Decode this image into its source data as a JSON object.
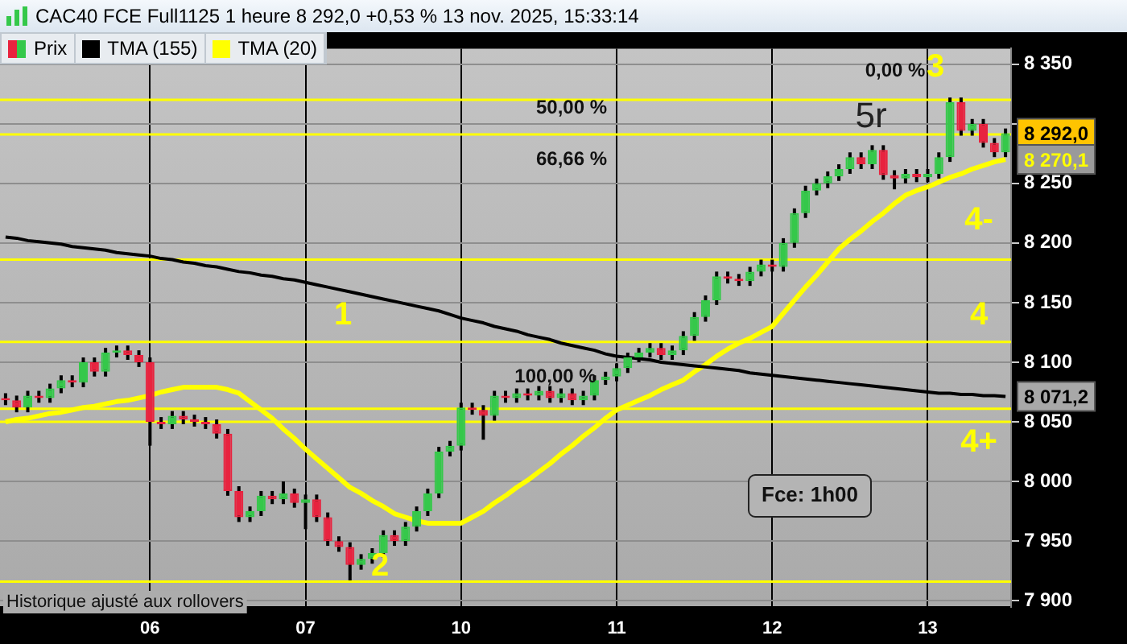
{
  "chart_data": {
    "type": "candlestick",
    "title": "CAC40 FCE Full1125 1 heure 8 292,0 +0,53 % 13 nov. 2025, 15:33:14",
    "categories": [
      null,
      null,
      null,
      null,
      null,
      null,
      null,
      null,
      null,
      null,
      null,
      null,
      null,
      "06",
      null,
      null,
      null,
      null,
      null,
      null,
      null,
      null,
      null,
      null,
      null,
      null,
      null,
      "07",
      null,
      null,
      null,
      null,
      null,
      null,
      null,
      null,
      null,
      null,
      null,
      null,
      null,
      "10",
      null,
      null,
      null,
      null,
      null,
      null,
      null,
      null,
      null,
      null,
      null,
      null,
      null,
      "11",
      null,
      null,
      null,
      null,
      null,
      null,
      null,
      null,
      null,
      null,
      null,
      null,
      null,
      "12",
      null,
      null,
      null,
      null,
      null,
      null,
      null,
      null,
      null,
      null,
      null,
      null,
      null,
      "13",
      null,
      null,
      null,
      null,
      null,
      null,
      null
    ],
    "series": [
      {
        "name": "Prix",
        "colors": [
          "#e8233f",
          "#e8233f",
          "#35c84a",
          "#e8233f",
          "#35c84a",
          "#35c84a",
          "#e8233f",
          "#35c84a",
          "#e8233f",
          "#35c84a",
          "#35c84a",
          "#e8233f",
          "#e8233f",
          "#e8233f",
          "#e8233f",
          "#35c84a",
          "#e8233f",
          "#e8233f",
          "#e8233f",
          "#e8233f",
          "#e8233f",
          "#e8233f",
          "#35c84a",
          "#35c84a",
          "#e8233f",
          "#35c84a",
          "#e8233f",
          "#35c84a",
          "#e8233f",
          "#e8233f",
          "#e8233f",
          "#e8233f",
          "#35c84a",
          "#35c84a",
          "#35c84a",
          "#e8233f",
          "#35c84a",
          "#35c84a",
          "#35c84a",
          "#35c84a",
          "#35c84a",
          "#35c84a",
          "#e8233f",
          "#e8233f",
          "#35c84a",
          "#e8233f",
          "#35c84a",
          "#e8233f",
          "#35c84a",
          "#e8233f",
          "#35c84a",
          "#e8233f",
          "#35c84a",
          "#35c84a",
          "#35c84a",
          "#35c84a",
          "#35c84a",
          "#35c84a",
          "#35c84a",
          "#e8233f",
          "#35c84a",
          "#35c84a",
          "#35c84a",
          "#35c84a",
          "#35c84a",
          "#e8233f",
          "#e8233f",
          "#35c84a",
          "#35c84a",
          "#e8233f",
          "#35c84a",
          "#35c84a",
          "#35c84a",
          "#35c84a",
          "#35c84a",
          "#35c84a",
          "#35c84a",
          "#e8233f",
          "#35c84a",
          "#e8233f",
          "#e8233f",
          "#35c84a",
          "#e8233f",
          "#35c84a",
          "#35c84a",
          "#35c84a",
          "#e8233f",
          "#35c84a",
          "#e8233f",
          "#e8233f",
          "#35c84a"
        ],
        "value_labels": [
          null,
          null,
          null,
          null,
          null,
          null,
          null,
          null,
          null,
          null,
          null,
          null,
          null,
          null,
          null,
          null,
          null,
          null,
          null,
          null,
          null,
          null,
          null,
          null,
          null,
          null,
          null,
          null,
          null,
          null,
          null,
          null,
          null,
          null,
          null,
          null,
          null,
          null,
          null,
          null,
          null,
          null,
          null,
          null,
          null,
          null,
          null,
          null,
          null,
          null,
          null,
          null,
          null,
          null,
          null,
          null,
          null,
          null,
          null,
          null,
          null,
          null,
          null,
          null,
          null,
          null,
          null,
          null,
          null,
          null,
          null,
          null,
          null,
          null,
          null,
          null,
          null,
          null,
          null,
          null,
          null,
          null,
          null,
          null,
          null,
          null,
          null,
          null,
          null,
          null,
          "8 292,0"
        ],
        "ohlc": [
          [
            8070,
            8074,
            8064,
            8068
          ],
          [
            8068,
            8072,
            8058,
            8062
          ],
          [
            8062,
            8076,
            8058,
            8072
          ],
          [
            8072,
            8076,
            8066,
            8070
          ],
          [
            8070,
            8082,
            8066,
            8078
          ],
          [
            8078,
            8089,
            8074,
            8085
          ],
          [
            8085,
            8089,
            8079,
            8083
          ],
          [
            8083,
            8104,
            8079,
            8100
          ],
          [
            8100,
            8104,
            8088,
            8092
          ],
          [
            8092,
            8112,
            8088,
            8108
          ],
          [
            8108,
            8114,
            8104,
            8110
          ],
          [
            8110,
            8114,
            8102,
            8106
          ],
          [
            8106,
            8110,
            8096,
            8100
          ],
          [
            8100,
            8104,
            8030,
            8050
          ],
          [
            8050,
            8054,
            8044,
            8048
          ],
          [
            8048,
            8059,
            8044,
            8055
          ],
          [
            8055,
            8059,
            8048,
            8052
          ],
          [
            8052,
            8056,
            8046,
            8050
          ],
          [
            8050,
            8054,
            8044,
            8048
          ],
          [
            8048,
            8052,
            8036,
            8040
          ],
          [
            8040,
            8044,
            7988,
            7992
          ],
          [
            7992,
            7996,
            7966,
            7970
          ],
          [
            7970,
            7979,
            7966,
            7975
          ],
          [
            7975,
            7992,
            7971,
            7988
          ],
          [
            7988,
            7992,
            7981,
            7985
          ],
          [
            7985,
            8000,
            7981,
            7990
          ],
          [
            7990,
            7994,
            7978,
            7982
          ],
          [
            7982,
            7989,
            7960,
            7985
          ],
          [
            7985,
            7989,
            7966,
            7970
          ],
          [
            7970,
            7974,
            7946,
            7950
          ],
          [
            7950,
            7954,
            7941,
            7945
          ],
          [
            7945,
            7949,
            7917,
            7930
          ],
          [
            7930,
            7939,
            7926,
            7935
          ],
          [
            7935,
            7944,
            7931,
            7940
          ],
          [
            7940,
            7959,
            7936,
            7955
          ],
          [
            7955,
            7959,
            7946,
            7950
          ],
          [
            7950,
            7966,
            7946,
            7962
          ],
          [
            7962,
            7979,
            7958,
            7975
          ],
          [
            7975,
            7994,
            7971,
            7990
          ],
          [
            7990,
            8029,
            7986,
            8025
          ],
          [
            8025,
            8034,
            8021,
            8030
          ],
          [
            8030,
            8066,
            8026,
            8062
          ],
          [
            8062,
            8066,
            8056,
            8060
          ],
          [
            8060,
            8064,
            8035,
            8055
          ],
          [
            8055,
            8076,
            8051,
            8072
          ],
          [
            8072,
            8076,
            8066,
            8070
          ],
          [
            8070,
            8078,
            8066,
            8074
          ],
          [
            8074,
            8078,
            8068,
            8072
          ],
          [
            8072,
            8080,
            8068,
            8076
          ],
          [
            8076,
            8080,
            8066,
            8070
          ],
          [
            8070,
            8078,
            8066,
            8074
          ],
          [
            8074,
            8078,
            8064,
            8068
          ],
          [
            8068,
            8076,
            8064,
            8072
          ],
          [
            8072,
            8089,
            8068,
            8085
          ],
          [
            8085,
            8092,
            8081,
            8088
          ],
          [
            8088,
            8099,
            8084,
            8095
          ],
          [
            8095,
            8108,
            8091,
            8104
          ],
          [
            8104,
            8112,
            8100,
            8108
          ],
          [
            8108,
            8116,
            8104,
            8112
          ],
          [
            8112,
            8116,
            8102,
            8106
          ],
          [
            8106,
            8114,
            8102,
            8110
          ],
          [
            8110,
            8126,
            8106,
            8122
          ],
          [
            8122,
            8142,
            8118,
            8138
          ],
          [
            8138,
            8156,
            8134,
            8152
          ],
          [
            8152,
            8176,
            8148,
            8172
          ],
          [
            8172,
            8176,
            8166,
            8170
          ],
          [
            8170,
            8174,
            8164,
            8168
          ],
          [
            8168,
            8180,
            8164,
            8176
          ],
          [
            8176,
            8186,
            8172,
            8182
          ],
          [
            8182,
            8186,
            8176,
            8180
          ],
          [
            8180,
            8204,
            8176,
            8200
          ],
          [
            8200,
            8229,
            8196,
            8225
          ],
          [
            8225,
            8248,
            8221,
            8244
          ],
          [
            8244,
            8254,
            8240,
            8250
          ],
          [
            8250,
            8260,
            8246,
            8256
          ],
          [
            8256,
            8266,
            8252,
            8262
          ],
          [
            8262,
            8276,
            8258,
            8272
          ],
          [
            8272,
            8276,
            8262,
            8266
          ],
          [
            8266,
            8282,
            8262,
            8278
          ],
          [
            8278,
            8282,
            8253,
            8257
          ],
          [
            8257,
            8261,
            8245,
            8254
          ],
          [
            8254,
            8262,
            8250,
            8258
          ],
          [
            8258,
            8262,
            8251,
            8255
          ],
          [
            8255,
            8262,
            8251,
            8258
          ],
          [
            8258,
            8276,
            8254,
            8272
          ],
          [
            8272,
            8322,
            8268,
            8318
          ],
          [
            8318,
            8322,
            8290,
            8294
          ],
          [
            8294,
            8304,
            8290,
            8300
          ],
          [
            8300,
            8304,
            8280,
            8284
          ],
          [
            8284,
            8288,
            8272,
            8276
          ],
          [
            8276,
            8296,
            8272,
            8292
          ]
        ]
      },
      {
        "name": "TMA (155)",
        "type": "line",
        "color": "#000000",
        "values": [
          8205,
          8204,
          8202,
          8201,
          8200,
          8199,
          8197,
          8196,
          8195,
          8194,
          8192,
          8191,
          8190,
          8189,
          8187,
          8186,
          8184,
          8183,
          8181,
          8180,
          8178,
          8176,
          8175,
          8173,
          8172,
          8170,
          8169,
          8167,
          8165,
          8163,
          8161,
          8159,
          8157,
          8155,
          8153,
          8151,
          8149,
          8147,
          8145,
          8143,
          8140,
          8137,
          8135,
          8133,
          8130,
          8128,
          8126,
          8123,
          8121,
          8119,
          8116,
          8114,
          8112,
          8110,
          8107,
          8105,
          8104,
          8103,
          8102,
          8100,
          8099,
          8098,
          8097,
          8096,
          8095,
          8094,
          8093,
          8091,
          8090,
          8089,
          8088,
          8087,
          8086,
          8085,
          8084,
          8083,
          8082,
          8081,
          8080,
          8079,
          8078,
          8077,
          8076,
          8075,
          8074,
          8074,
          8073,
          8073,
          8072,
          8072,
          8071.2
        ],
        "value_labels": [
          null,
          null,
          null,
          null,
          null,
          null,
          null,
          null,
          null,
          null,
          null,
          null,
          null,
          null,
          null,
          null,
          null,
          null,
          null,
          null,
          null,
          null,
          null,
          null,
          null,
          null,
          null,
          null,
          null,
          null,
          null,
          null,
          null,
          null,
          null,
          null,
          null,
          null,
          null,
          null,
          null,
          null,
          null,
          null,
          null,
          null,
          null,
          null,
          null,
          null,
          null,
          null,
          null,
          null,
          null,
          null,
          null,
          null,
          null,
          null,
          null,
          null,
          null,
          null,
          null,
          null,
          null,
          null,
          null,
          null,
          null,
          null,
          null,
          null,
          null,
          null,
          null,
          null,
          null,
          null,
          null,
          null,
          null,
          null,
          null,
          null,
          null,
          null,
          null,
          null,
          "8 071,2"
        ]
      },
      {
        "name": "TMA (20)",
        "type": "line",
        "color": "#ffff00",
        "values": [
          8050,
          8052,
          8053,
          8055,
          8057,
          8058,
          8060,
          8062,
          8063,
          8065,
          8067,
          8068,
          8070,
          8072,
          8075,
          8077,
          8079,
          8079,
          8079,
          8079,
          8077,
          8074,
          8067,
          8060,
          8053,
          8044,
          8036,
          8027,
          8019,
          8011,
          8003,
          7995,
          7990,
          7984,
          7979,
          7973,
          7970,
          7967,
          7965,
          7965,
          7965,
          7965,
          7970,
          7975,
          7982,
          7988,
          7995,
          8001,
          8008,
          8015,
          8023,
          8030,
          8038,
          8045,
          8053,
          8060,
          8064,
          8068,
          8072,
          8077,
          8081,
          8085,
          8092,
          8098,
          8105,
          8111,
          8116,
          8120,
          8125,
          8130,
          8141,
          8152,
          8163,
          8173,
          8184,
          8195,
          8203,
          8210,
          8218,
          8225,
          8233,
          8240,
          8244,
          8247,
          8251,
          8255,
          8258,
          8262,
          8265,
          8268,
          8270.1
        ],
        "value_labels": [
          null,
          null,
          null,
          null,
          null,
          null,
          null,
          null,
          null,
          null,
          null,
          null,
          null,
          null,
          null,
          null,
          null,
          null,
          null,
          null,
          null,
          null,
          null,
          null,
          null,
          null,
          null,
          null,
          null,
          null,
          null,
          null,
          null,
          null,
          null,
          null,
          null,
          null,
          null,
          null,
          null,
          null,
          null,
          null,
          null,
          null,
          null,
          null,
          null,
          null,
          null,
          null,
          null,
          null,
          null,
          null,
          null,
          null,
          null,
          null,
          null,
          null,
          null,
          null,
          null,
          null,
          null,
          null,
          null,
          null,
          null,
          null,
          null,
          null,
          null,
          null,
          null,
          null,
          null,
          null,
          null,
          null,
          null,
          null,
          null,
          null,
          null,
          null,
          null,
          null,
          "8 270,1"
        ]
      }
    ],
    "ylim": [
      7895,
      8363
    ],
    "yticks": [
      {
        "value": 7900,
        "label": "7 900"
      },
      {
        "value": 7950,
        "label": "7 950"
      },
      {
        "value": 8000,
        "label": "8 000"
      },
      {
        "value": 8050,
        "label": "8 050"
      },
      {
        "value": 8100,
        "label": "8 100"
      },
      {
        "value": 8150,
        "label": "8 150"
      },
      {
        "value": 8200,
        "label": "8 200"
      },
      {
        "value": 8250,
        "label": "8 250"
      },
      {
        "value": 8300,
        "label": null
      },
      {
        "value": 8350,
        "label": "8 350"
      }
    ],
    "ref_lines": [
      {
        "axis": "y",
        "value": 8320,
        "color": "#ffff00"
      },
      {
        "axis": "y",
        "value": 8291,
        "color": "#ffff00"
      },
      {
        "axis": "y",
        "value": 8186,
        "color": "#ffff00"
      },
      {
        "axis": "y",
        "value": 8117,
        "color": "#ffff00"
      },
      {
        "axis": "y",
        "value": 8061,
        "color": "#ffff00"
      },
      {
        "axis": "y",
        "value": 8050,
        "color": "#ffff00"
      },
      {
        "axis": "y",
        "value": 7916,
        "color": "#ffff00"
      }
    ],
    "annotations": [
      "1",
      "2",
      "3",
      "4-",
      "4",
      "4+",
      "5r",
      "50,00 %",
      "66,66 %",
      "0,00 %",
      "100,00 %",
      "Fce: 1h00",
      "Historique ajusté aux rollovers"
    ],
    "grid": true,
    "legend": "top left"
  }
}
